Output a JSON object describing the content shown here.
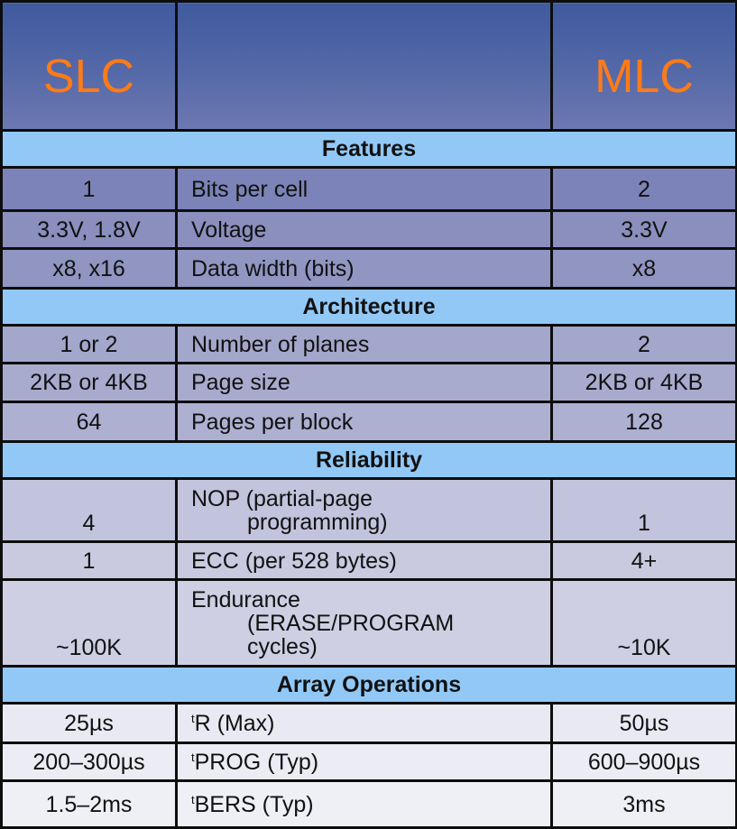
{
  "header": {
    "slc": "SLC",
    "middle": "",
    "mlc": "MLC"
  },
  "sections": {
    "features": "Features",
    "architecture": "Architecture",
    "reliability": "Reliability",
    "array_operations": "Array Operations"
  },
  "rows": {
    "bits_per_cell": {
      "slc": "1",
      "label": "Bits per cell",
      "mlc": "2"
    },
    "voltage": {
      "slc": "3.3V, 1.8V",
      "label": "Voltage",
      "mlc": "3.3V"
    },
    "data_width": {
      "slc": "x8, x16",
      "label": "Data width (bits)",
      "mlc": "x8"
    },
    "planes": {
      "slc": "1 or 2",
      "label": "Number of planes",
      "mlc": "2"
    },
    "page_size": {
      "slc": "2KB or 4KB",
      "label": "Page size",
      "mlc": "2KB or 4KB"
    },
    "pages_per_block": {
      "slc": "64",
      "label": "Pages per block",
      "mlc": "128"
    },
    "nop": {
      "slc": "4",
      "label_line1": "NOP (partial-page",
      "label_line2": "programming)",
      "mlc": "1"
    },
    "ecc": {
      "slc": "1",
      "label": "ECC (per 528 bytes)",
      "mlc": "4+"
    },
    "endurance": {
      "slc": "~100K",
      "label_line1": "Endurance",
      "label_line2": "(ERASE/PROGRAM",
      "label_line3": "cycles)",
      "mlc": "~10K"
    },
    "tr": {
      "slc": "25µs",
      "label_sup": "t",
      "label": "R (Max)",
      "mlc": "50µs"
    },
    "tprog": {
      "slc": "200–300µs",
      "label_sup": "t",
      "label": "PROG (Typ)",
      "mlc": "600–900µs"
    },
    "tbers": {
      "slc": "1.5–2ms",
      "label_sup": "t",
      "label": "BERS (Typ)",
      "mlc": "3ms"
    }
  },
  "colors": {
    "header_gradient_top": "#3f5a9e",
    "header_text": "#ff7b18",
    "section_band": "#92c8f6",
    "decor_triangle": "#3f9a5a"
  }
}
